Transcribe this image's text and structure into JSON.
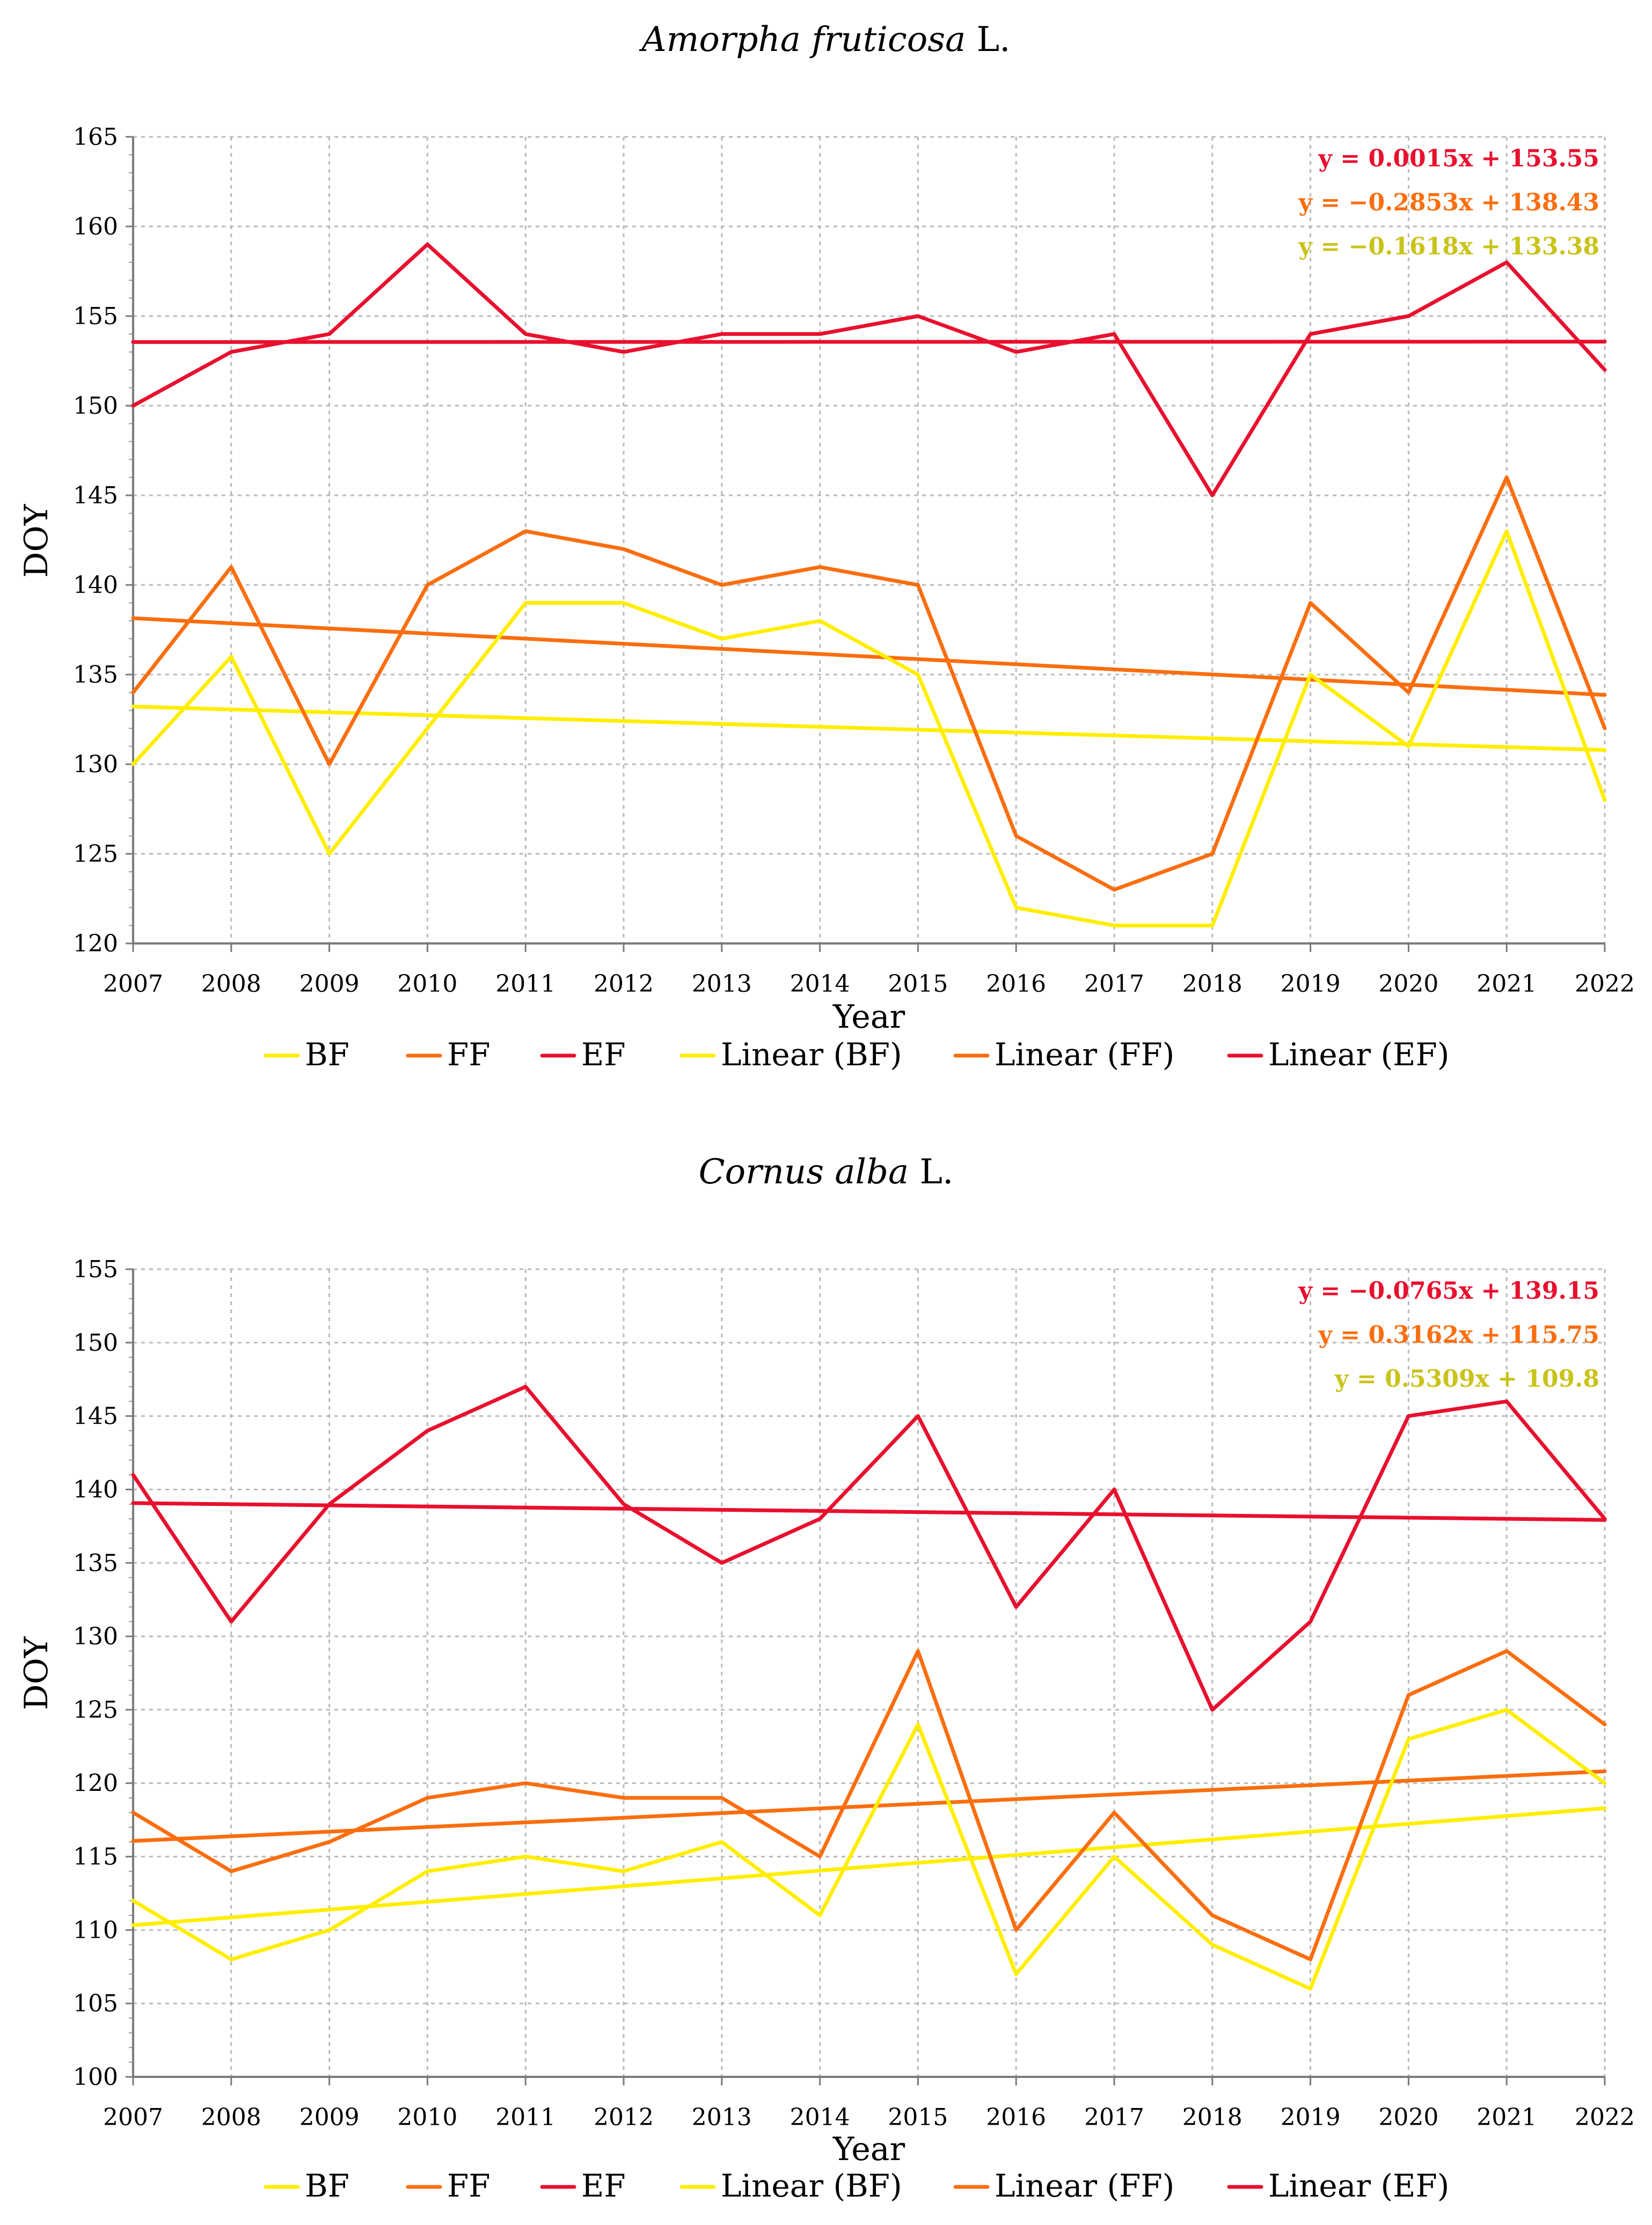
{
  "colors": {
    "BF": "#ffee00",
    "FF": "#fa6e0f",
    "EF": "#e8102e",
    "eq_BF": "#c9c31a"
  },
  "chart_data": [
    {
      "type": "line",
      "title": "Amorpha fruticosa",
      "title_suffix": " L.",
      "xlabel": "Year",
      "ylabel": "DOY",
      "ylim": [
        120,
        165
      ],
      "ytick_step": 5,
      "x": [
        2007,
        2008,
        2009,
        2010,
        2011,
        2012,
        2013,
        2014,
        2015,
        2016,
        2017,
        2018,
        2019,
        2020,
        2021,
        2022
      ],
      "series": [
        {
          "key": "BF",
          "name": "BF",
          "values": [
            130,
            136,
            125,
            132,
            139,
            139,
            137,
            138,
            135,
            122,
            121,
            121,
            135,
            131,
            143,
            128
          ]
        },
        {
          "key": "FF",
          "name": "FF",
          "values": [
            134,
            141,
            130,
            140,
            143,
            142,
            140,
            141,
            140,
            126,
            123,
            125,
            139,
            134,
            146,
            132
          ]
        },
        {
          "key": "EF",
          "name": "EF",
          "values": [
            150,
            153,
            154,
            159,
            154,
            153,
            154,
            154,
            155,
            153,
            154,
            145,
            154,
            155,
            158,
            152
          ]
        }
      ],
      "trendlines": [
        {
          "key": "BF",
          "name": "Linear (BF)",
          "slope": -0.1618,
          "intercept": 133.38,
          "equation": "y = −0.1618x + 133.38"
        },
        {
          "key": "FF",
          "name": "Linear (FF)",
          "slope": -0.2853,
          "intercept": 138.43,
          "equation": "y = −0.2853x + 138.43"
        },
        {
          "key": "EF",
          "name": "Linear (EF)",
          "slope": 0.0015,
          "intercept": 153.55,
          "equation": "y = 0.0015x + 153.55"
        }
      ],
      "legend": [
        "BF",
        "FF",
        "EF",
        "Linear (BF)",
        "Linear (FF)",
        "Linear (EF)"
      ],
      "grid": true
    },
    {
      "type": "line",
      "title": "Cornus alba",
      "title_suffix": " L.",
      "xlabel": "Year",
      "ylabel": "DOY",
      "ylim": [
        100,
        155
      ],
      "ytick_step": 5,
      "x": [
        2007,
        2008,
        2009,
        2010,
        2011,
        2012,
        2013,
        2014,
        2015,
        2016,
        2017,
        2018,
        2019,
        2020,
        2021,
        2022
      ],
      "series": [
        {
          "key": "BF",
          "name": "BF",
          "values": [
            112,
            108,
            110,
            114,
            115,
            114,
            116,
            111,
            124,
            107,
            115,
            109,
            106,
            123,
            125,
            120
          ]
        },
        {
          "key": "FF",
          "name": "FF",
          "values": [
            118,
            114,
            116,
            119,
            120,
            119,
            119,
            115,
            129,
            110,
            118,
            111,
            108,
            126,
            129,
            124
          ]
        },
        {
          "key": "EF",
          "name": "EF",
          "values": [
            141,
            131,
            139,
            144,
            147,
            139,
            135,
            138,
            145,
            132,
            140,
            125,
            131,
            145,
            146,
            138
          ]
        }
      ],
      "trendlines": [
        {
          "key": "BF",
          "name": "Linear (BF)",
          "slope": 0.5309,
          "intercept": 109.8,
          "equation": "y = 0.5309x + 109.8"
        },
        {
          "key": "FF",
          "name": "Linear (FF)",
          "slope": 0.3162,
          "intercept": 115.75,
          "equation": "y = 0.3162x + 115.75"
        },
        {
          "key": "EF",
          "name": "Linear (EF)",
          "slope": -0.0765,
          "intercept": 139.15,
          "equation": "y = −0.0765x + 139.15"
        }
      ],
      "legend": [
        "BF",
        "FF",
        "EF",
        "Linear (BF)",
        "Linear (FF)",
        "Linear (EF)"
      ],
      "grid": true
    }
  ]
}
